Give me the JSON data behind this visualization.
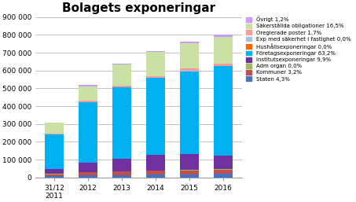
{
  "title": "Bolagets exponeringar",
  "categories": [
    "31/12\n2011",
    "2012",
    "2013",
    "2014",
    "2015",
    "2016"
  ],
  "series": [
    {
      "label": "Staten 4,3%",
      "color": "#4472C4",
      "values": [
        10000,
        12000,
        13000,
        16000,
        16000,
        20000
      ]
    },
    {
      "label": "Kommuner 3,2%",
      "color": "#C0504D",
      "values": [
        8000,
        18000,
        20000,
        22000,
        24000,
        25000
      ]
    },
    {
      "label": "Adm organ 0,0%",
      "color": "#9BBB59",
      "values": [
        1000,
        1000,
        1000,
        1000,
        1000,
        1000
      ]
    },
    {
      "label": "Institutsexponeringar 9,9%",
      "color": "#7030A0",
      "values": [
        28000,
        52000,
        72000,
        88000,
        90000,
        75000
      ]
    },
    {
      "label": "Företagsexponeringar 63,2%",
      "color": "#00B0F0",
      "values": [
        195000,
        340000,
        400000,
        430000,
        465000,
        505000
      ]
    },
    {
      "label": "Hushållsexponeringar 0,0%",
      "color": "#FF6600",
      "values": [
        500,
        500,
        500,
        500,
        500,
        500
      ]
    },
    {
      "label": "Exp med säkerhet i fastighet 0,0%",
      "color": "#9DC3E6",
      "values": [
        500,
        500,
        500,
        500,
        500,
        500
      ]
    },
    {
      "label": "Oreglerade poster 1,7%",
      "color": "#FF9999",
      "values": [
        5000,
        8000,
        9000,
        11000,
        13000,
        13000
      ]
    },
    {
      "label": "Säkerställda obligationer 16,5%",
      "color": "#C9E2A3",
      "values": [
        58000,
        80000,
        118000,
        135000,
        145000,
        150000
      ]
    },
    {
      "label": "Övrigt 1,2%",
      "color": "#CC99FF",
      "values": [
        4000,
        8000,
        6000,
        6000,
        6000,
        10000
      ]
    }
  ],
  "ylim": [
    0,
    900000
  ],
  "yticks": [
    0,
    100000,
    200000,
    300000,
    400000,
    500000,
    600000,
    700000,
    800000,
    900000
  ],
  "ytick_labels": [
    "0",
    "100 000",
    "200 000",
    "300 000",
    "400 000",
    "500 000",
    "600 000",
    "700 000",
    "800 000",
    "900 000"
  ],
  "title_fontsize": 11,
  "bg_color": "#FFFFFF",
  "grid_color": "#C0C0C0"
}
